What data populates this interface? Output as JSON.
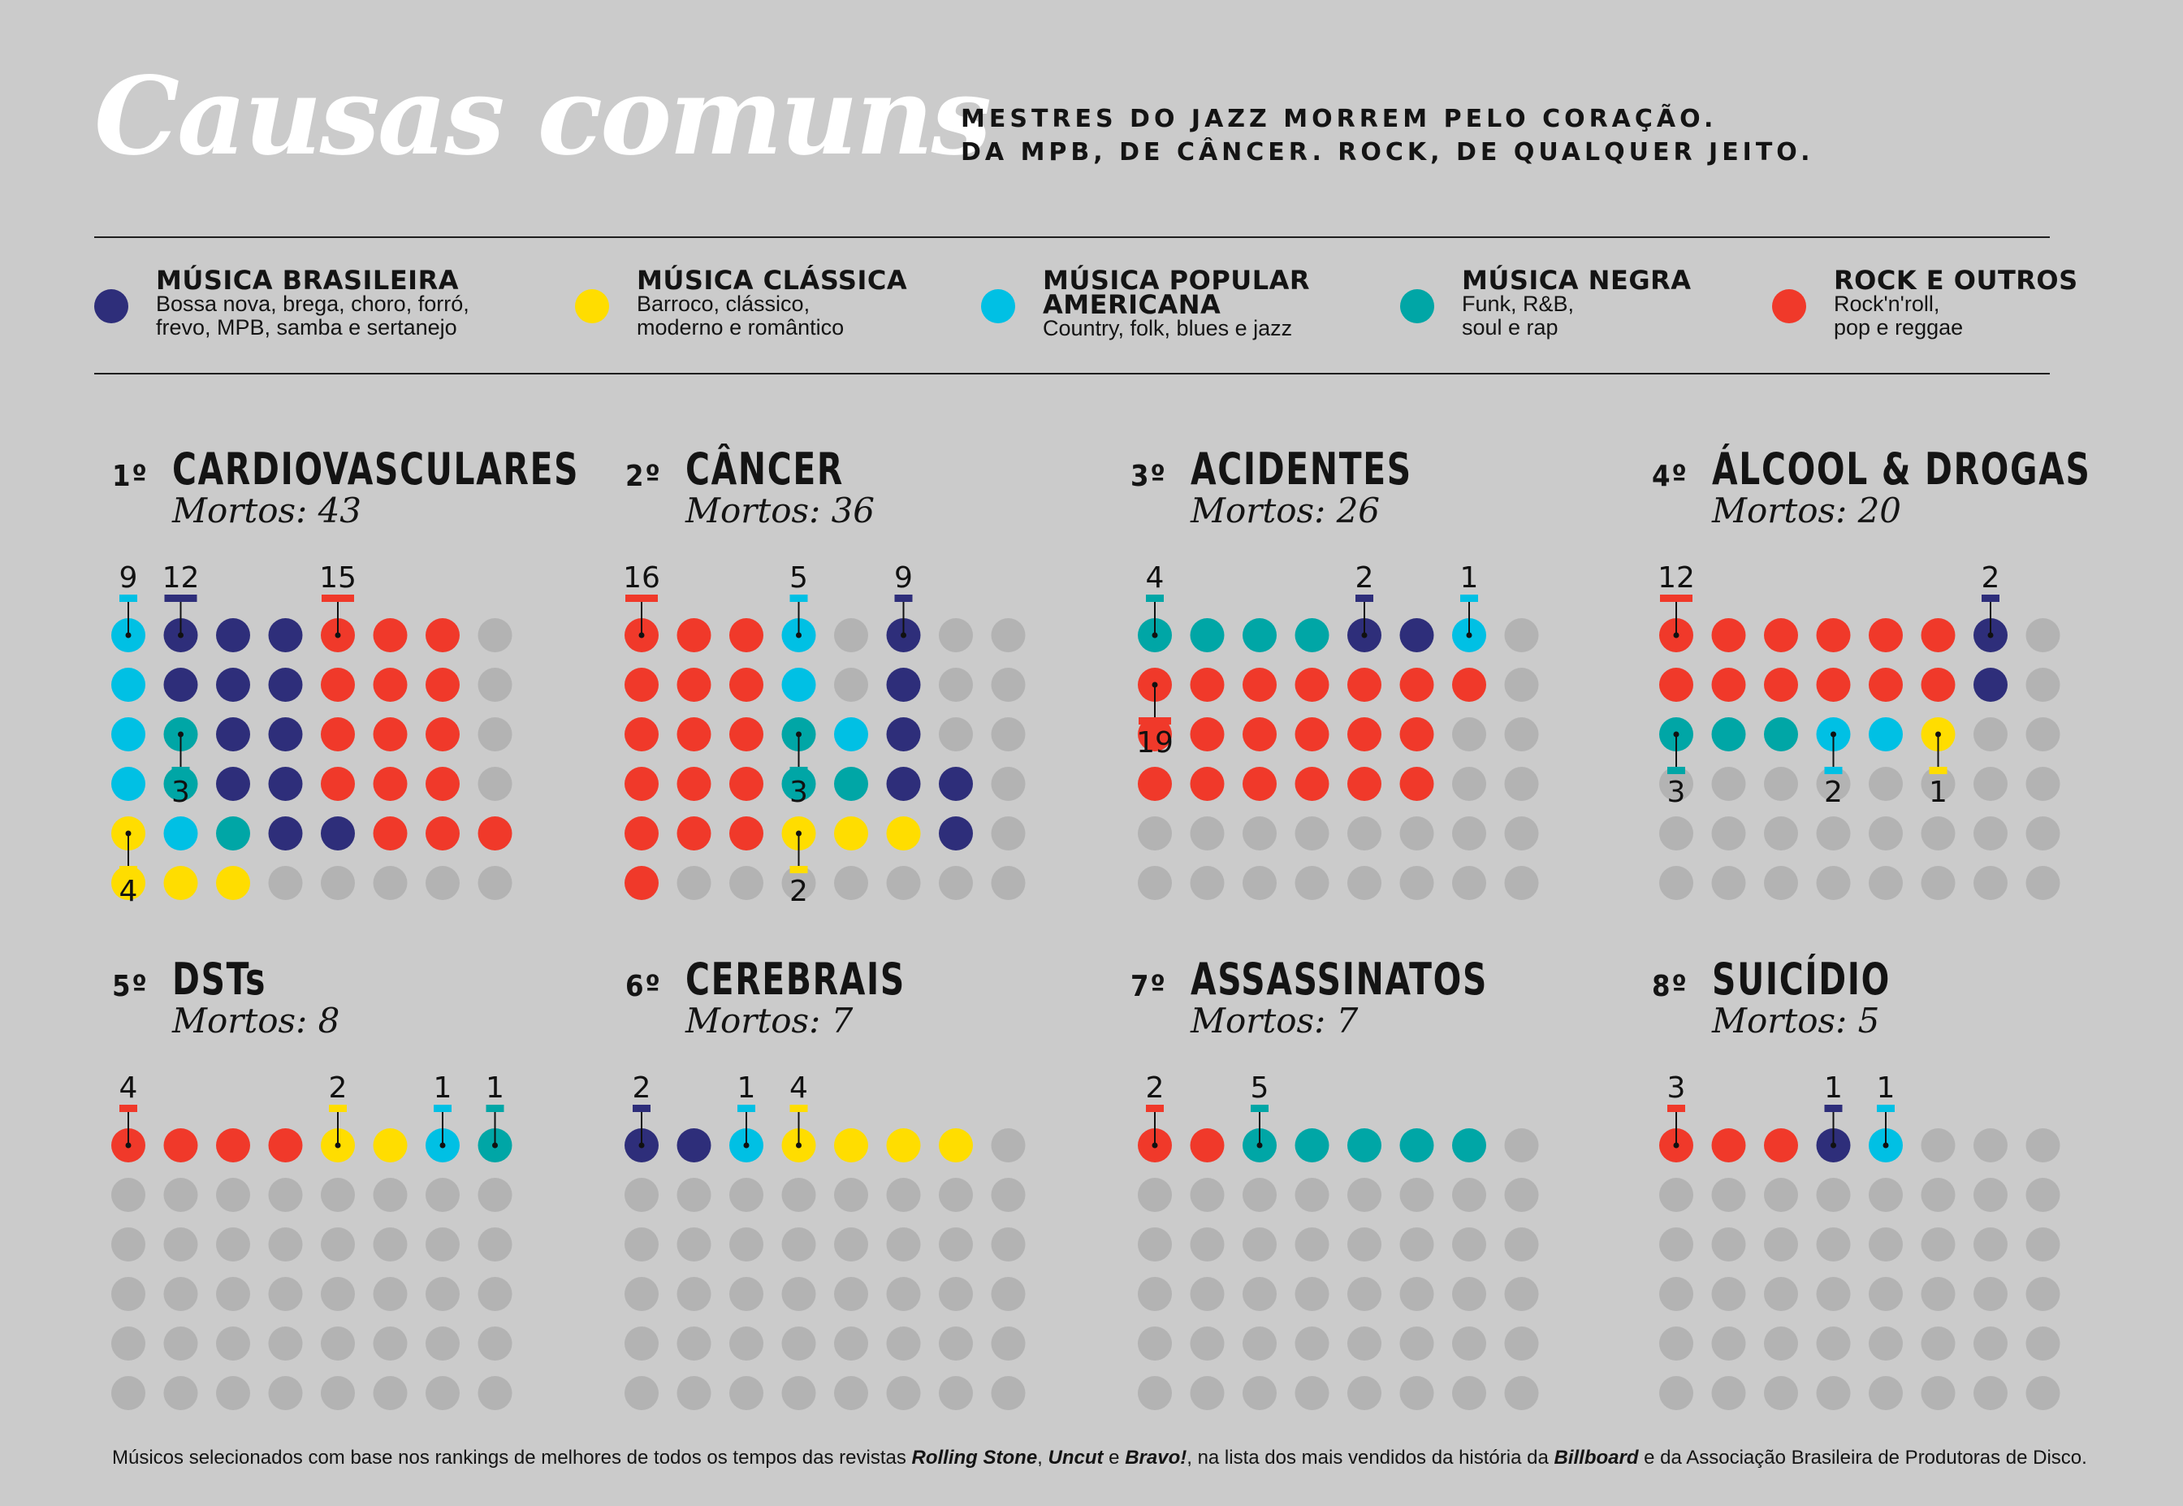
{
  "title": "Causas comuns",
  "subtitle_lines": [
    "MESTRES DO JAZZ MORREM PELO CORAÇÃO.",
    "DA MPB, DE CÂNCER. ROCK, DE QUALQUER JEITO."
  ],
  "legend": [
    {
      "key": "br",
      "name_lines": [
        "MÚSICA BRASILEIRA"
      ],
      "desc_lines": [
        "Bossa nova, brega, choro, forró,",
        "frevo, MPB, samba e sertanejo"
      ],
      "color": "#2e2e7a",
      "icon": "circle-dot"
    },
    {
      "key": "cl",
      "name_lines": [
        "MÚSICA CLÁSSICA"
      ],
      "desc_lines": [
        "Barroco, clássico,",
        "moderno e romântico"
      ],
      "color": "#ffdd00",
      "icon": "circle-dot"
    },
    {
      "key": "am",
      "name_lines": [
        "MÚSICA POPULAR",
        "AMERICANA"
      ],
      "desc_lines": [
        "Country, folk, blues e jazz"
      ],
      "color": "#00c0e4",
      "icon": "circle-dot"
    },
    {
      "key": "ng",
      "name_lines": [
        "MÚSICA NEGRA"
      ],
      "desc_lines": [
        "Funk, R&B,",
        "soul e rap"
      ],
      "color": "#00a6a6",
      "icon": "circle-dot"
    },
    {
      "key": "rk",
      "name_lines": [
        "ROCK E OUTROS"
      ],
      "desc_lines": [
        "Rock'n'roll,",
        "pop e reggae"
      ],
      "color": "#f0392a",
      "icon": "circle-dot"
    }
  ],
  "empty_color": "#b3b3b3",
  "chart_data": {
    "type": "dot-matrix",
    "grid": {
      "columns": 8,
      "rows": 6
    },
    "panels": [
      {
        "rank": "1º",
        "title": "CARDIOVASCULARES",
        "count_label": "Mortos: 43",
        "total": 43,
        "breakdown": [
          {
            "genre": "am",
            "value": 9
          },
          {
            "genre": "ng",
            "value": 3
          },
          {
            "genre": "br",
            "value": 12
          },
          {
            "genre": "rk",
            "value": 15
          },
          {
            "genre": "cl",
            "value": 4
          }
        ],
        "cells": [
          "ambbbrrr",
          "ambbbrrr",
          "amnbbrrr",
          "amnbbrrr",
          "camnbbrrr",
          "ccc....."
        ]
      },
      {
        "rank": "2º",
        "title": "CÂNCER",
        "count_label": "Mortos: 36",
        "total": 36,
        "breakdown": [
          {
            "genre": "rk",
            "value": 16
          },
          {
            "genre": "ng",
            "value": 3
          },
          {
            "genre": "am",
            "value": 5
          },
          {
            "genre": "br",
            "value": 9
          },
          {
            "genre": "cl",
            "value": 2
          }
        ],
        "cells": [
          "rrramab.",
          "rrramab.",
          "rrrnamb.",
          "rrrnnbb.",
          "rrrcccb.",
          "r.......",
          ""
        ]
      },
      {
        "rank": "3º",
        "title": "ACIDENTES",
        "count_label": "Mortos: 26",
        "total": 26,
        "breakdown": [
          {
            "genre": "ng",
            "value": 4
          },
          {
            "genre": "br",
            "value": 2
          },
          {
            "genre": "am",
            "value": 1
          },
          {
            "genre": "rk",
            "value": 19
          }
        ],
        "cells": [
          "nnnnbbam.",
          "rrrrrrr.",
          "rrrrrr..",
          "rrrrrr..",
          "........",
          "........"
        ]
      },
      {
        "rank": "4º",
        "title": "ÁLCOOL & DROGAS",
        "count_label": "Mortos: 20",
        "total": 20,
        "breakdown": [
          {
            "genre": "rk",
            "value": 12
          },
          {
            "genre": "br",
            "value": 2
          },
          {
            "genre": "ng",
            "value": 3
          },
          {
            "genre": "am",
            "value": 2
          },
          {
            "genre": "cl",
            "value": 1
          }
        ],
        "cells": [
          "rrrrrrb.",
          "rrrrrrb.",
          "nnnamamc..",
          "........",
          "........",
          "........"
        ]
      },
      {
        "rank": "5º",
        "title": "DSTs",
        "count_label": "Mortos: 8",
        "total": 8,
        "breakdown": [
          {
            "genre": "rk",
            "value": 4
          },
          {
            "genre": "cl",
            "value": 2
          },
          {
            "genre": "am",
            "value": 1
          },
          {
            "genre": "ng",
            "value": 1
          }
        ],
        "cells": [
          "rrrrccamn",
          "........",
          "........",
          "........",
          "........",
          "........"
        ]
      },
      {
        "rank": "6º",
        "title": "CEREBRAIS",
        "count_label": "Mortos: 7",
        "total": 7,
        "breakdown": [
          {
            "genre": "br",
            "value": 2
          },
          {
            "genre": "am",
            "value": 1
          },
          {
            "genre": "cl",
            "value": 4
          }
        ],
        "cells": [
          "bbamcccc.",
          "........",
          "........",
          "........",
          "........",
          "........"
        ]
      },
      {
        "rank": "7º",
        "title": "ASSASSINATOS",
        "count_label": "Mortos: 7",
        "total": 7,
        "breakdown": [
          {
            "genre": "rk",
            "value": 2
          },
          {
            "genre": "ng",
            "value": 5
          }
        ],
        "cells": [
          "rrnnnnn.",
          "........",
          "........",
          "........",
          "........",
          "........"
        ]
      },
      {
        "rank": "8º",
        "title": "SUICÍDIO",
        "count_label": "Mortos: 5",
        "total": 5,
        "breakdown": [
          {
            "genre": "rk",
            "value": 3
          },
          {
            "genre": "br",
            "value": 1
          },
          {
            "genre": "am",
            "value": 1
          }
        ],
        "cells": [
          "rrrbam...",
          "........",
          "........",
          "........",
          "........",
          "........"
        ]
      }
    ]
  },
  "footnote": {
    "parts": [
      {
        "text": "Músicos selecionados com base nos rankings de melhores de todos os tempos das revistas ",
        "bold": false
      },
      {
        "text": "Rolling Stone",
        "bold": true
      },
      {
        "text": ", ",
        "bold": false
      },
      {
        "text": "Uncut",
        "bold": true
      },
      {
        "text": " e ",
        "bold": false
      },
      {
        "text": "Bravo!",
        "bold": true
      },
      {
        "text": ", na lista dos mais vendidos da história da ",
        "bold": false
      },
      {
        "text": "Billboard",
        "bold": true
      },
      {
        "text": " e da Associação Brasileira de Produtoras de Disco.",
        "bold": false
      }
    ]
  }
}
